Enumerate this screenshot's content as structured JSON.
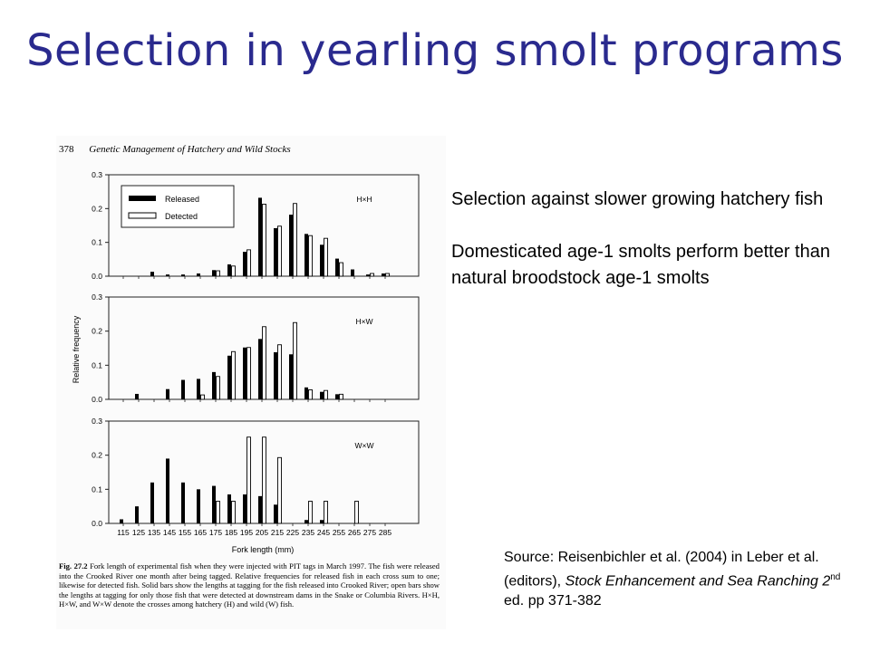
{
  "title": "Selection in yearling smolt programs",
  "book": {
    "page_number": "378",
    "running_head": "Genetic Management of Hatchery and Wild Stocks"
  },
  "chart_data": {
    "type": "bar",
    "ylabel": "Relative frequency",
    "xlabel": "Fork length (mm)",
    "ylim": [
      0,
      0.3
    ],
    "yticks": [
      "0.3",
      "0.2",
      "0.1",
      "0.0"
    ],
    "categories": [
      "115",
      "125",
      "135",
      "145",
      "155",
      "165",
      "175",
      "185",
      "195",
      "205",
      "215",
      "225",
      "235",
      "245",
      "255",
      "265",
      "275",
      "285"
    ],
    "legend": {
      "released": "Released",
      "detected": "Detected",
      "position": "top-left"
    },
    "panels": [
      {
        "label": "H×H",
        "released": [
          0,
          0,
          0.013,
          0.005,
          0.005,
          0.008,
          0.018,
          0.035,
          0.072,
          0.232,
          0.142,
          0.182,
          0.125,
          0.093,
          0.052,
          0.02,
          0.005,
          0.008
        ],
        "detected": [
          0,
          0,
          0,
          0,
          0,
          0,
          0.016,
          0.03,
          0.078,
          0.213,
          0.148,
          0.215,
          0.12,
          0.112,
          0.04,
          0,
          0.008,
          0.008
        ]
      },
      {
        "label": "H×W",
        "released": [
          0,
          0.016,
          0,
          0.03,
          0.057,
          0.06,
          0.08,
          0.128,
          0.152,
          0.177,
          0.138,
          0.132,
          0.035,
          0.022,
          0.015,
          0,
          0,
          0
        ],
        "detected": [
          0,
          0,
          0,
          0,
          0,
          0.013,
          0.067,
          0.14,
          0.152,
          0.213,
          0.16,
          0.225,
          0.028,
          0.026,
          0.015,
          0,
          0,
          0
        ]
      },
      {
        "label": "W×W",
        "released": [
          0.012,
          0.05,
          0.12,
          0.19,
          0.12,
          0.1,
          0.11,
          0.085,
          0.085,
          0.08,
          0.055,
          0,
          0.01,
          0.01,
          0,
          0,
          0,
          0
        ],
        "detected": [
          0,
          0,
          0,
          0,
          0,
          0,
          0.065,
          0.065,
          0.253,
          0.253,
          0.193,
          0,
          0.065,
          0.065,
          0,
          0.065,
          0,
          0
        ]
      }
    ]
  },
  "caption": {
    "label": "Fig. 27.2",
    "text": "Fork length of experimental fish when they were injected with PIT tags in March 1997. The fish were released into the Crooked River one month after being tagged. Relative frequencies for released fish in each cross sum to one; likewise for detected fish. Solid bars show the lengths at tagging for the fish released into Crooked River; open bars show the lengths at tagging for only those fish that were detected at downstream dams in the Snake or Columbia Rivers. H×H, H×W, and W×W denote the crosses among hatchery (H) and wild (W) fish."
  },
  "bullets": [
    "Selection against slower growing hatchery fish",
    "Domesticated age-1 smolts perform better than natural broodstock age-1 smolts"
  ],
  "source": {
    "prefix": "Source: Reisenbichler et al. (2004) in Leber et al. (editors), ",
    "book_title": "Stock Enhancement and Sea Ranching 2",
    "superscript": "nd",
    "suffix": " ed. pp 371-382"
  }
}
